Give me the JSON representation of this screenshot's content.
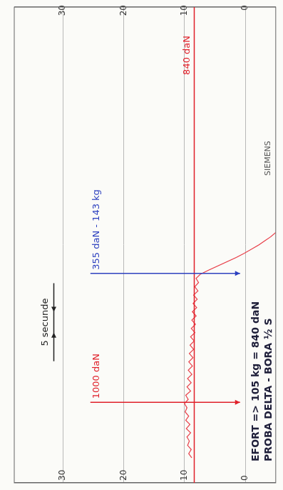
{
  "chart_data": {
    "type": "line",
    "title": "PROBA DELTA - BORA ½ S",
    "subtitle": "EFORT => 105 kg = 840 daN",
    "x": [
      6,
      7,
      8,
      9,
      10,
      11,
      12,
      13,
      14,
      15,
      16,
      17,
      18,
      19,
      20,
      21,
      22,
      23,
      24,
      25,
      26,
      27,
      28,
      29,
      30,
      31,
      32,
      33,
      34,
      35,
      36,
      37,
      38,
      39,
      40,
      41,
      42,
      43,
      44,
      45,
      46,
      47,
      48,
      49,
      50,
      51,
      52,
      53,
      54,
      55,
      56,
      57,
      58,
      59,
      60
    ],
    "values": [
      8.8,
      9.3,
      8.9,
      9.5,
      9.2,
      9.6,
      9.0,
      9.7,
      9.1,
      9.8,
      9.3,
      9.9,
      9.6,
      10.0,
      9.4,
      9.8,
      9.0,
      9.6,
      8.9,
      9.5,
      8.8,
      9.4,
      8.7,
      9.3,
      8.6,
      9.2,
      8.5,
      9.1,
      8.4,
      9.0,
      8.3,
      8.9,
      8.2,
      8.8,
      8.1,
      8.7,
      8.0,
      8.6,
      7.9,
      8.5,
      7.8,
      8.3,
      7.7,
      8.1,
      7.4,
      6.0,
      4.5,
      3.0,
      1.5,
      0.2,
      -1.0,
      -2.2,
      -3.2,
      -4.2,
      -5.0
    ],
    "color": "#e8404a",
    "xlim": [
      0,
      114
    ],
    "ylim": [
      -5,
      38
    ],
    "yticks": [
      0,
      10,
      20,
      30
    ],
    "y2lim": [
      -5,
      38
    ],
    "y2ticks": [
      0,
      10,
      20,
      30
    ],
    "grid": true,
    "tick_labels": "y",
    "annotations": [
      {
        "text": "1000 daN",
        "x": 19.3,
        "color": "#e0202a"
      },
      {
        "text": "840 daN",
        "y": 8.4,
        "color": "#e0202a"
      },
      {
        "text": "355 daN - 143 kg",
        "x": 50.2,
        "color": "#2b3fbf"
      },
      {
        "text": "5 secunde",
        "x": [
          36,
          41
        ],
        "y": 31.5,
        "color": "#222222"
      },
      {
        "text": "SIEMENS",
        "color": "#555555"
      }
    ]
  }
}
